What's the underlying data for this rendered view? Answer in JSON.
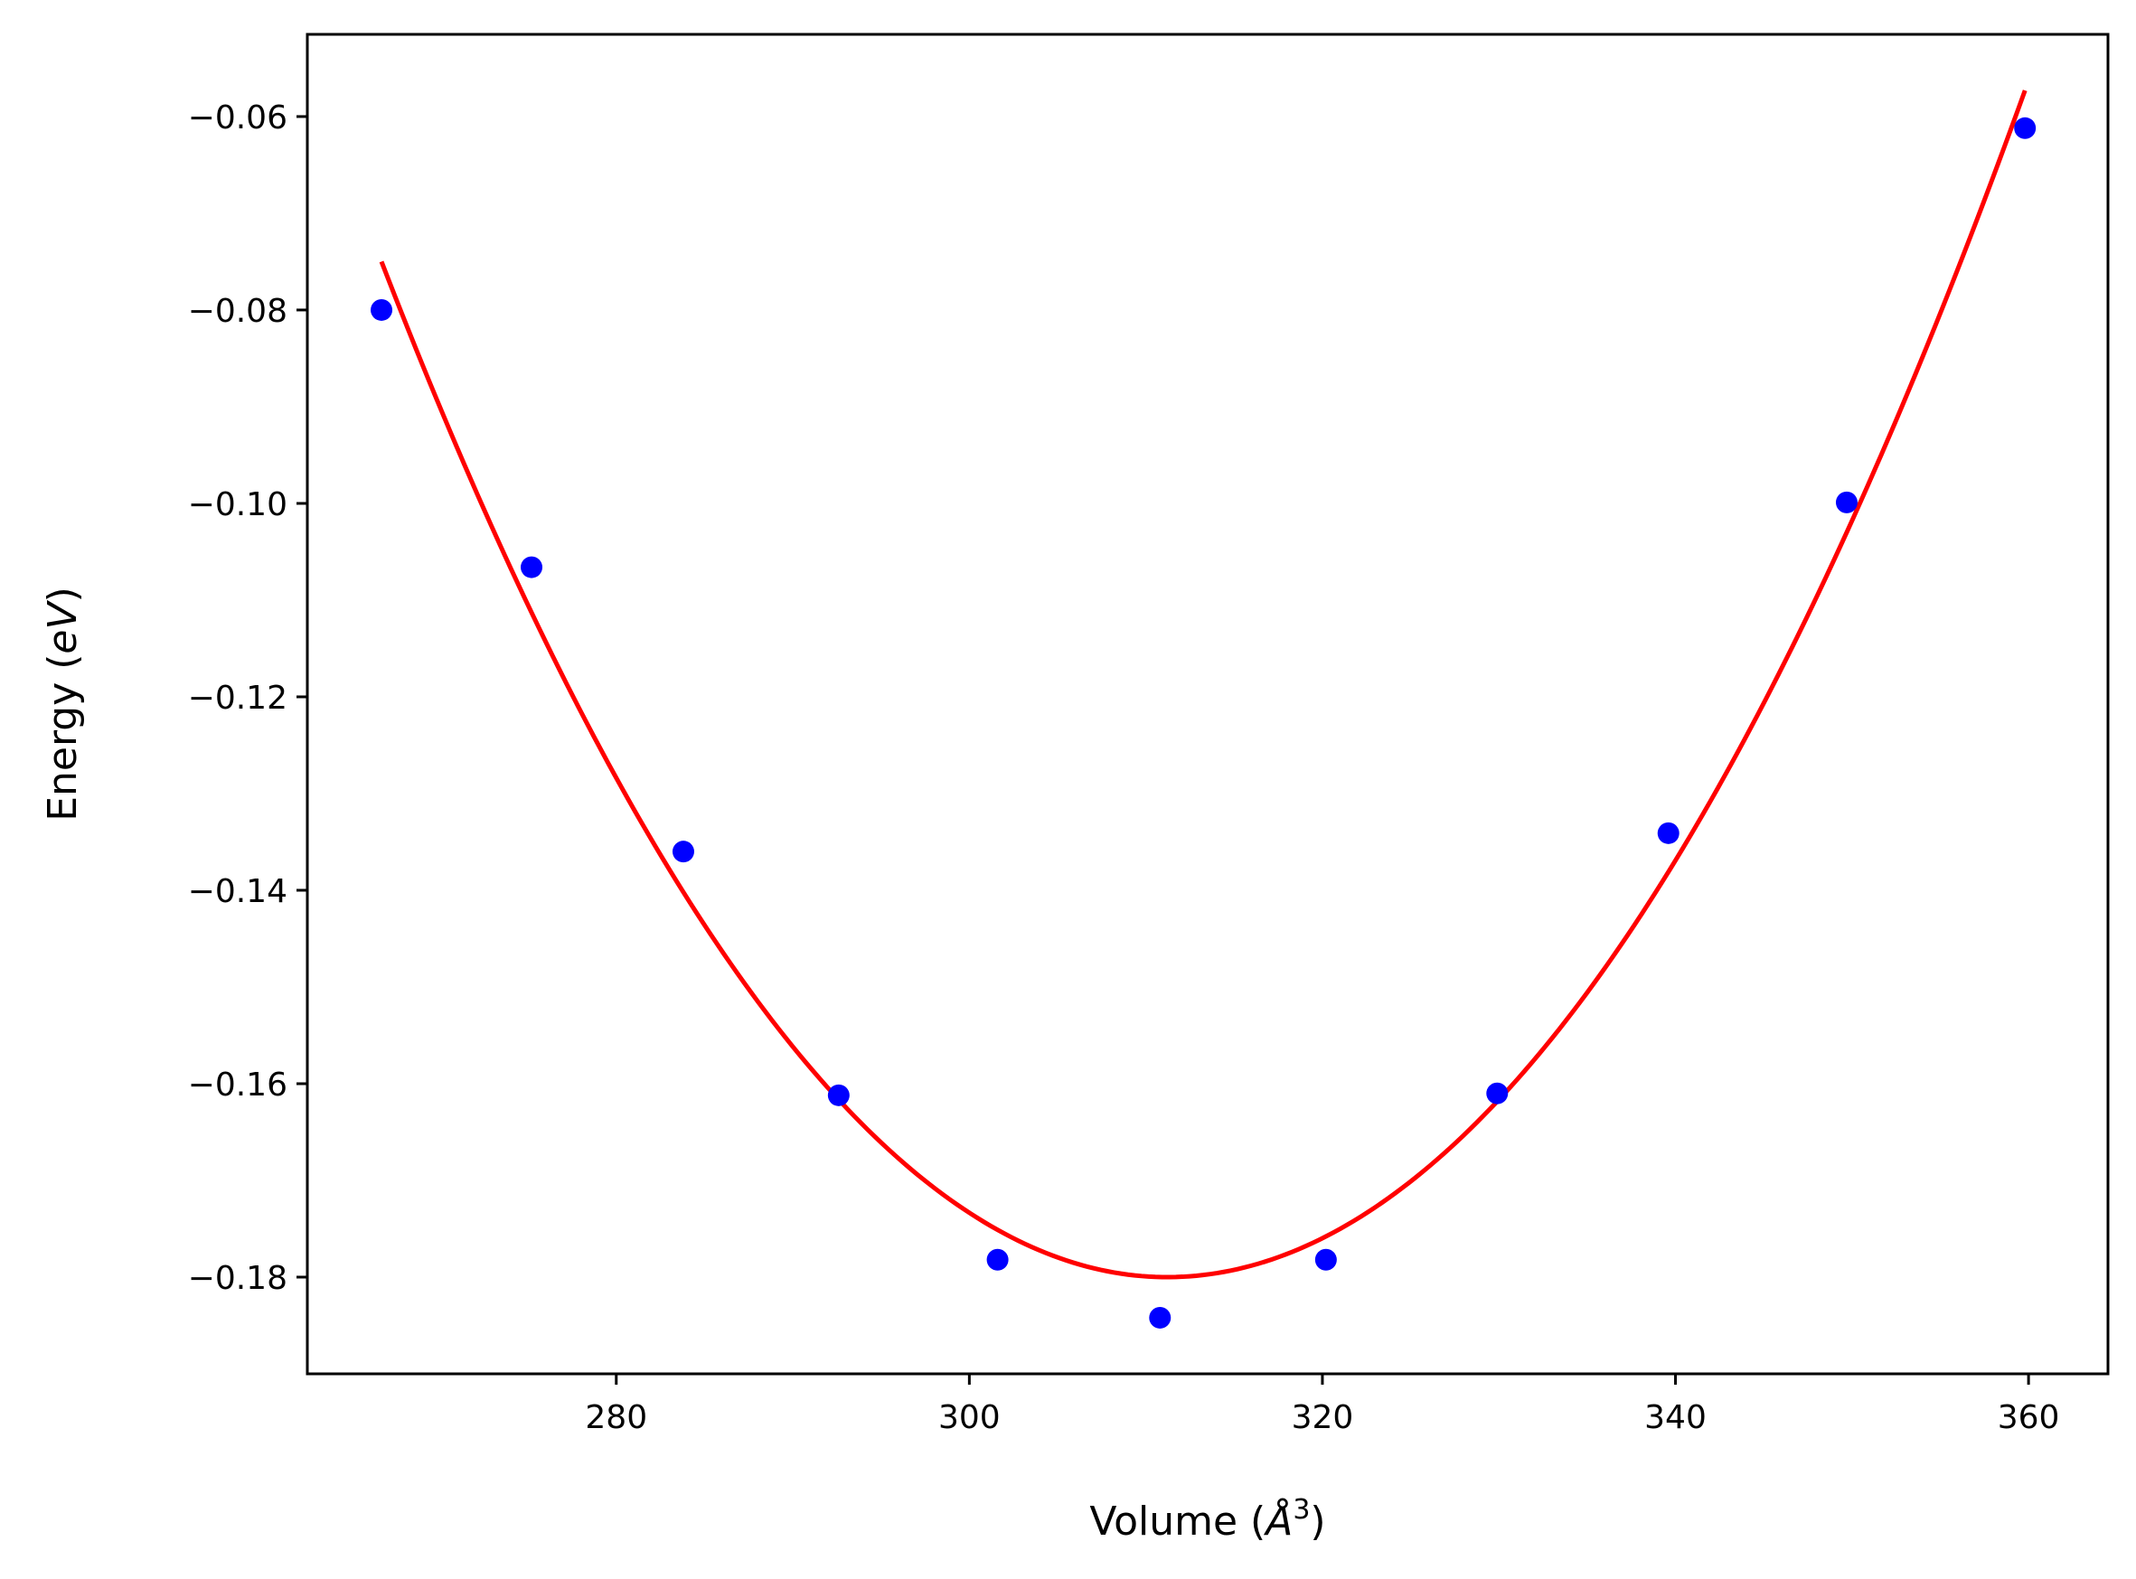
{
  "chart_data": {
    "type": "scatter",
    "title": "",
    "xlabel_parts": {
      "prefix": "Volume (",
      "symbol": "Å",
      "exponent": "3",
      "suffix": ")"
    },
    "ylabel_parts": {
      "prefix": "Energy (",
      "symbol": "eV",
      "suffix": ")"
    },
    "xlim": [
      262.5,
      364.5
    ],
    "ylim": [
      -0.19,
      -0.0515
    ],
    "x_ticks": [
      280,
      300,
      320,
      340,
      360
    ],
    "x_tick_labels": [
      "280",
      "300",
      "320",
      "340",
      "360"
    ],
    "y_ticks": [
      -0.18,
      -0.16,
      -0.14,
      -0.12,
      -0.1,
      -0.08,
      -0.06
    ],
    "y_tick_labels": [
      "−0.18",
      "−0.16",
      "−0.14",
      "−0.12",
      "−0.10",
      "−0.08",
      "−0.06"
    ],
    "grid": false,
    "series": [
      {
        "kind": "points",
        "color": "#0000ff",
        "x": [
          266.7,
          275.2,
          283.8,
          292.6,
          301.6,
          310.8,
          320.2,
          329.9,
          339.6,
          349.7,
          359.8
        ],
        "y": [
          -0.08,
          -0.1066,
          -0.136,
          -0.1612,
          -0.1782,
          -0.1842,
          -0.1782,
          -0.161,
          -0.1341,
          -0.0999,
          -0.0612
        ]
      },
      {
        "kind": "fit-curve",
        "color": "#ff0000",
        "x_range": [
          266.7,
          359.8
        ],
        "vertex_x": 311.2,
        "vertex_y": -0.18,
        "left_end_y": -0.075,
        "right_end_y": -0.0573
      }
    ]
  }
}
